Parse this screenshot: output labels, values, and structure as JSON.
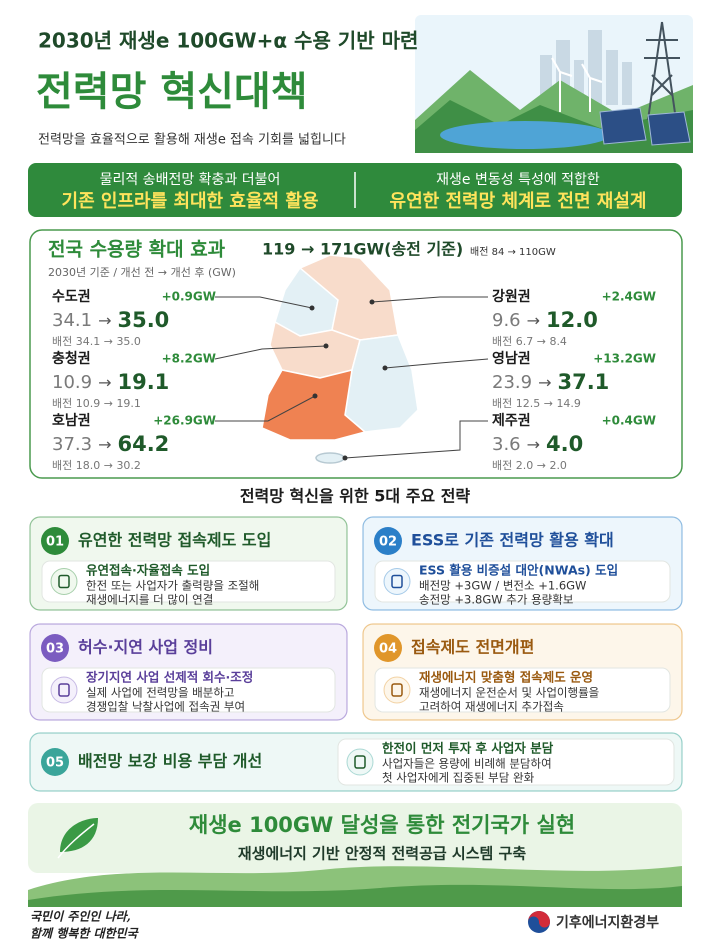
{
  "header": {
    "subtitle": "2030년 재생e 100GW+α 수용 기반 마련",
    "title": "전력망 혁신대책",
    "description": "전력망을 효율적으로 활용해 재생e 접속 기회를 넓힙니다"
  },
  "banner": {
    "left": {
      "line1": "물리적 송배전망 확충과 더불어",
      "line2": "기존 인프라를 최대한 효율적 활용"
    },
    "right": {
      "line1": "재생e 변동성 특성에 적합한",
      "line2": "유연한 전력망 체계로 전면 재설계"
    }
  },
  "capacity": {
    "title": "전국 수용량 확대 효과",
    "total": "119 → 171GW(송전 기준)",
    "distribution": "배전 84 → 110GW",
    "note": "2030년 기준 / 개선 전 → 개선 후 (GW)",
    "arrow": "→",
    "regions": [
      {
        "name": "수도권",
        "increase": "+0.9GW",
        "before": "34.1",
        "after": "35.0",
        "distribution": "배전 34.1 → 35.0"
      },
      {
        "name": "충청권",
        "increase": "+8.2GW",
        "before": "10.9",
        "after": "19.1",
        "distribution": "배전 10.9 → 19.1"
      },
      {
        "name": "호남권",
        "increase": "+26.9GW",
        "before": "37.3",
        "after": "64.2",
        "distribution": "배전 18.0 → 30.2"
      },
      {
        "name": "강원권",
        "increase": "+2.4GW",
        "before": "9.6",
        "after": "12.0",
        "distribution": "배전 6.7 → 8.4"
      },
      {
        "name": "영남권",
        "increase": "+13.2GW",
        "before": "23.9",
        "after": "37.1",
        "distribution": "배전 12.5 → 14.9"
      },
      {
        "name": "제주권",
        "increase": "+0.4GW",
        "before": "3.6",
        "after": "4.0",
        "distribution": "배전 2.0 → 2.0"
      }
    ]
  },
  "strategies": {
    "title": "전력망 혁신을 위한 5대 주요 전략",
    "items": [
      {
        "number": "01",
        "title": "유연한 전력망 접속제도 도입",
        "subtitle": "유연접속·자율접속 도입",
        "lines": [
          "한전 또는 사업자가 출력량을 조절해",
          "재생에너지를 더 많이 연결"
        ]
      },
      {
        "number": "02",
        "title": "ESS로 기존 전력망 활용 확대",
        "subtitle": "ESS 활용 비증설 대안(NWAs) 도입",
        "lines": [
          "배전망 +3GW / 변전소 +1.6GW",
          "송전망 +3.8GW 추가 용량확보"
        ]
      },
      {
        "number": "03",
        "title": "허수·지연 사업 정비",
        "subtitle": "장기지연 사업 선제적 회수·조정",
        "lines": [
          "실제 사업에 전력망을 배분하고",
          "경쟁입찰 낙찰사업에 접속권 부여"
        ]
      },
      {
        "number": "04",
        "title": "접속제도 전면개편",
        "subtitle": "재생에너지 맞춤형 접속제도 운영",
        "lines": [
          "재생에너지 운전순서 및 사업이행률을",
          "고려하여 재생에너지 추가접속"
        ]
      },
      {
        "number": "05",
        "title": "배전망 보강 비용 부담 개선",
        "subtitle": "한전이 먼저 투자 후 사업자 분담",
        "lines": [
          "사업자들은 용량에 비례해 분담하여",
          "첫 사업자에게 집중된 부담 완화"
        ]
      }
    ]
  },
  "footer": {
    "headline": "재생e 100GW 달성을 통한 전기국가 실현",
    "subline": "재생에너지 기반 안정적 전력공급 시스템 구축",
    "slogan": [
      "국민이 주인인 나라,",
      "함께 행복한 대한민국"
    ],
    "ministry": "기후에너지환경부"
  }
}
